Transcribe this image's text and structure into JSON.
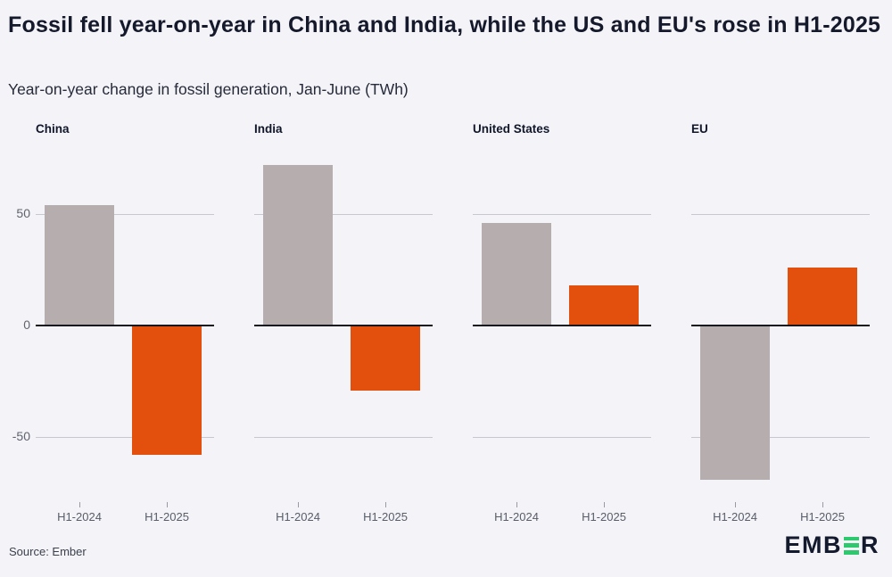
{
  "header": {
    "title": "Fossil fell year-on-year in China and India, while the US and EU's rose in H1-2025",
    "subtitle": "Year-on-year change in fossil generation, Jan-June (TWh)"
  },
  "footer": {
    "source": "Source: Ember",
    "logo": {
      "label": "EMBER",
      "prefix": "EMB",
      "suffix": "R",
      "green_letter": "E"
    }
  },
  "colors": {
    "background": "#f4f3f7",
    "bar_h1_2024": "#b6aeae",
    "bar_h1_2025": "#e3500d",
    "gridline": "#c7c7cf",
    "zero_line": "#17171f",
    "axis_label": "#60646f",
    "facet_title": "#10172a",
    "logo_green": "#2ec96f",
    "logo_dark": "#141a2e"
  },
  "chart_data": {
    "type": "bar",
    "title": "Fossil fell year-on-year in China and India, while the US and EU's rose in H1-2025",
    "subtitle": "Year-on-year change in fossil generation, Jan-June (TWh)",
    "unit": "TWh",
    "categories": [
      "H1-2024",
      "H1-2025"
    ],
    "facets": [
      {
        "name": "China",
        "values": [
          54,
          -58
        ]
      },
      {
        "name": "India",
        "values": [
          72,
          -29
        ]
      },
      {
        "name": "United States",
        "values": [
          46,
          18
        ]
      },
      {
        "name": "EU",
        "values": [
          -69,
          26
        ]
      }
    ],
    "yticks": [
      50,
      0,
      -50
    ],
    "ylim": [
      -78,
      80
    ],
    "xlabel": "",
    "ylabel": "",
    "grid": true,
    "legend": "none"
  }
}
